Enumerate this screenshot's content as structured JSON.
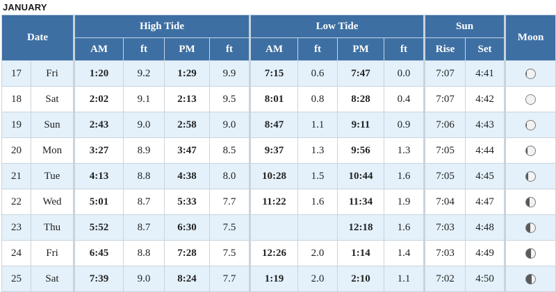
{
  "month": "JANUARY",
  "headers": {
    "date": "Date",
    "high_tide": "High Tide",
    "low_tide": "Low Tide",
    "sun": "Sun",
    "moon": "Moon",
    "am": "AM",
    "ft": "ft",
    "pm": "PM",
    "rise": "Rise",
    "set": "Set"
  },
  "rows": [
    {
      "day": "17",
      "dow": "Fri",
      "high_am": "1:20",
      "high_am_ft": "9.2",
      "high_pm": "1:29",
      "high_pm_ft": "9.9",
      "low_am": "7:15",
      "low_am_ft": "0.6",
      "low_pm": "7:47",
      "low_pm_ft": "0.0",
      "sunrise": "7:07",
      "sunset": "4:41",
      "moon_icon": "waxing-gibbous-moon-icon",
      "moon_lit": 0.95
    },
    {
      "day": "18",
      "dow": "Sat",
      "high_am": "2:02",
      "high_am_ft": "9.1",
      "high_pm": "2:13",
      "high_pm_ft": "9.5",
      "low_am": "8:01",
      "low_am_ft": "0.8",
      "low_pm": "8:28",
      "low_pm_ft": "0.4",
      "sunrise": "7:07",
      "sunset": "4:42",
      "moon_icon": "full-moon-icon",
      "moon_lit": 1.0
    },
    {
      "day": "19",
      "dow": "Sun",
      "high_am": "2:43",
      "high_am_ft": "9.0",
      "high_pm": "2:58",
      "high_pm_ft": "9.0",
      "low_am": "8:47",
      "low_am_ft": "1.1",
      "low_pm": "9:11",
      "low_pm_ft": "0.9",
      "sunrise": "7:06",
      "sunset": "4:43",
      "moon_icon": "waning-gibbous-moon-icon",
      "moon_lit": 0.95
    },
    {
      "day": "20",
      "dow": "Mon",
      "high_am": "3:27",
      "high_am_ft": "8.9",
      "high_pm": "3:47",
      "high_pm_ft": "8.5",
      "low_am": "9:37",
      "low_am_ft": "1.3",
      "low_pm": "9:56",
      "low_pm_ft": "1.3",
      "sunrise": "7:05",
      "sunset": "4:44",
      "moon_icon": "waning-gibbous-moon-icon",
      "moon_lit": 0.85
    },
    {
      "day": "21",
      "dow": "Tue",
      "high_am": "4:13",
      "high_am_ft": "8.8",
      "high_pm": "4:38",
      "high_pm_ft": "8.0",
      "low_am": "10:28",
      "low_am_ft": "1.5",
      "low_pm": "10:44",
      "low_pm_ft": "1.6",
      "sunrise": "7:05",
      "sunset": "4:45",
      "moon_icon": "waning-gibbous-moon-icon",
      "moon_lit": 0.75
    },
    {
      "day": "22",
      "dow": "Wed",
      "high_am": "5:01",
      "high_am_ft": "8.7",
      "high_pm": "5:33",
      "high_pm_ft": "7.7",
      "low_am": "11:22",
      "low_am_ft": "1.6",
      "low_pm": "11:34",
      "low_pm_ft": "1.9",
      "sunrise": "7:04",
      "sunset": "4:47",
      "moon_icon": "waning-gibbous-moon-icon",
      "moon_lit": 0.65
    },
    {
      "day": "23",
      "dow": "Thu",
      "high_am": "5:52",
      "high_am_ft": "8.7",
      "high_pm": "6:30",
      "high_pm_ft": "7.5",
      "low_am": "",
      "low_am_ft": "",
      "low_pm": "12:18",
      "low_pm_ft": "1.6",
      "sunrise": "7:03",
      "sunset": "4:48",
      "moon_icon": "last-quarter-moon-icon",
      "moon_lit": 0.55
    },
    {
      "day": "24",
      "dow": "Fri",
      "high_am": "6:45",
      "high_am_ft": "8.8",
      "high_pm": "7:28",
      "high_pm_ft": "7.5",
      "low_am": "12:26",
      "low_am_ft": "2.0",
      "low_pm": "1:14",
      "low_pm_ft": "1.4",
      "sunrise": "7:03",
      "sunset": "4:49",
      "moon_icon": "last-quarter-moon-icon",
      "moon_lit": 0.5
    },
    {
      "day": "25",
      "dow": "Sat",
      "high_am": "7:39",
      "high_am_ft": "9.0",
      "high_pm": "8:24",
      "high_pm_ft": "7.7",
      "low_am": "1:19",
      "low_am_ft": "2.0",
      "low_pm": "2:10",
      "low_pm_ft": "1.1",
      "sunrise": "7:02",
      "sunset": "4:50",
      "moon_icon": "waning-crescent-moon-icon",
      "moon_lit": 0.4
    }
  ]
}
